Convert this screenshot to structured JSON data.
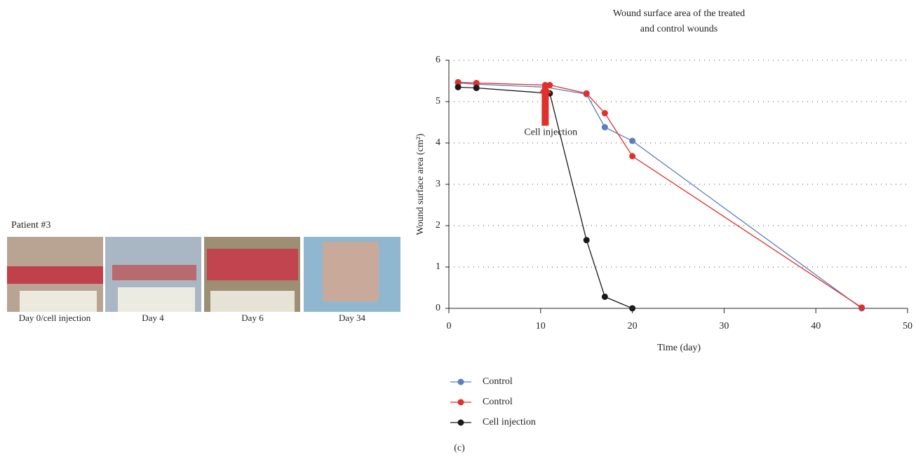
{
  "figure": {
    "patient_label": "Patient #3",
    "panels": [
      "Day 0/cell injection",
      "Day 4",
      "Day 6",
      "Day 34"
    ],
    "panel_tag": "(c)"
  },
  "chart_data": {
    "type": "line",
    "title": [
      "Wound surface area of the treated",
      "and control wounds"
    ],
    "xlabel": "Time (day)",
    "ylabel": "Wound surface area (cm²)",
    "xlim": [
      0,
      50
    ],
    "xticks": [
      0,
      10,
      20,
      30,
      40,
      50
    ],
    "ylim": [
      0,
      6
    ],
    "yticks": [
      0,
      1,
      2,
      3,
      4,
      5,
      6
    ],
    "grid": true,
    "legend": "bottom",
    "series": [
      {
        "name": "Control",
        "color": "#5b7dc2",
        "x": [
          1,
          3,
          10.5,
          15,
          17,
          20,
          45
        ],
        "values": [
          5.45,
          5.42,
          5.35,
          5.18,
          4.38,
          4.05,
          0
        ]
      },
      {
        "name": "Control",
        "color": "#e0302b",
        "x": [
          1,
          3,
          10.5,
          11,
          15,
          17,
          20,
          45
        ],
        "values": [
          5.47,
          5.45,
          5.4,
          5.4,
          5.2,
          4.72,
          3.68,
          0.02
        ]
      },
      {
        "name": "Cell injection",
        "color": "#1a1a1a",
        "x": [
          1,
          3,
          11,
          15,
          17,
          20
        ],
        "values": [
          5.35,
          5.33,
          5.2,
          1.65,
          0.28,
          0
        ]
      }
    ],
    "annotations": [
      {
        "text": "Cell injection",
        "x": 10.5,
        "y": 5.4
      }
    ]
  }
}
